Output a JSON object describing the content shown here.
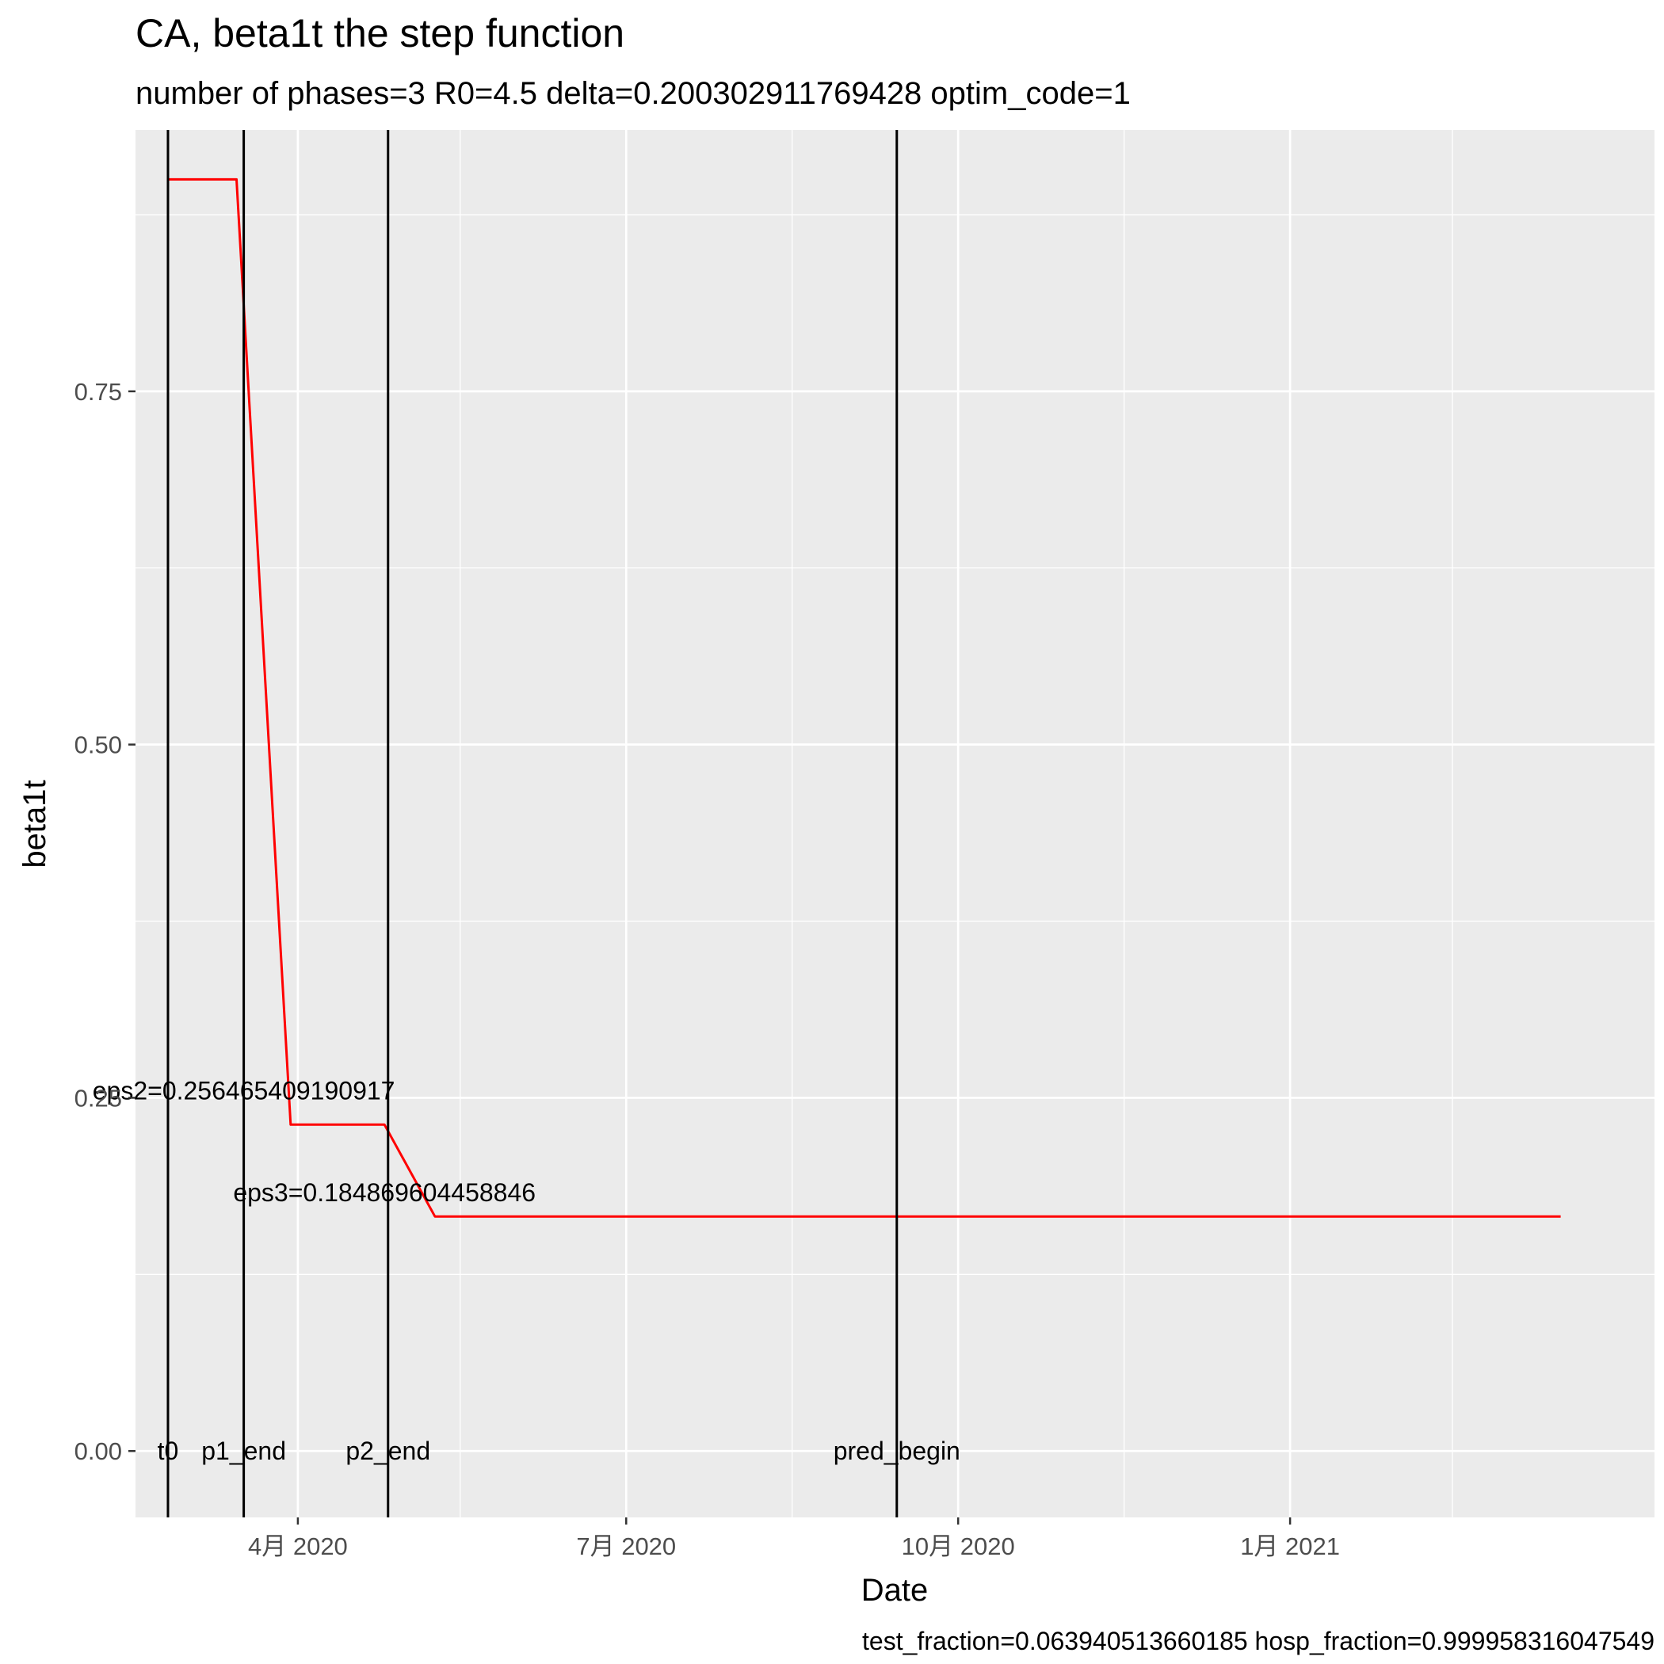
{
  "chart_data": {
    "type": "line",
    "title": "CA, beta1t the step function",
    "subtitle": "number of phases=3   R0=4.5   delta=0.200302911769428   optim_code=1",
    "caption": "test_fraction=0.063940513660185   hosp_fraction=0.999958316047549",
    "xlabel": "Date",
    "ylabel": "beta1t",
    "x_type": "date",
    "xlim": [
      "2020-02-16",
      "2021-04-12"
    ],
    "ylim": [
      -0.047,
      0.935
    ],
    "x_ticks": [
      {
        "date": "2020-04-01",
        "label": "4月 2020"
      },
      {
        "date": "2020-07-01",
        "label": "7月 2020"
      },
      {
        "date": "2020-10-01",
        "label": "10月 2020"
      },
      {
        "date": "2021-01-01",
        "label": "1月 2021"
      }
    ],
    "x_minor_dates": [
      "2020-02-15",
      "2020-05-16",
      "2020-08-16",
      "2020-11-16",
      "2021-02-15"
    ],
    "y_ticks": [
      0.0,
      0.25,
      0.5,
      0.75
    ],
    "y_tick_labels": [
      "0.00",
      "0.25",
      "0.50",
      "0.75"
    ],
    "y_minor": [
      0.125,
      0.375,
      0.625,
      0.875
    ],
    "grid": true,
    "legend": "none",
    "series": [
      {
        "color": "#ff0000",
        "points": [
          {
            "x": "2020-02-25",
            "y": 0.9
          },
          {
            "x": "2020-03-15",
            "y": 0.9
          },
          {
            "x": "2020-03-30",
            "y": 0.231
          },
          {
            "x": "2020-04-25",
            "y": 0.231
          },
          {
            "x": "2020-05-09",
            "y": 0.166
          },
          {
            "x": "2021-03-17",
            "y": 0.166
          }
        ]
      }
    ],
    "vlines": [
      {
        "date": "2020-02-25",
        "label": "t0"
      },
      {
        "date": "2020-03-17",
        "label": "p1_end"
      },
      {
        "date": "2020-04-26",
        "label": "p2_end"
      },
      {
        "date": "2020-09-14",
        "label": "pred_begin"
      }
    ],
    "vline_label_y": 0.0,
    "annotations": [
      {
        "text": "eps2=0.256465409190917",
        "x": "2020-03-17",
        "y": 0.255
      },
      {
        "text": "eps3=0.184869604458846",
        "x": "2020-04-25",
        "y": 0.183
      }
    ],
    "colors": {
      "panel": "#ebebeb",
      "grid_major": "#ffffff",
      "line": "#ff0000",
      "vline": "#000000"
    }
  }
}
